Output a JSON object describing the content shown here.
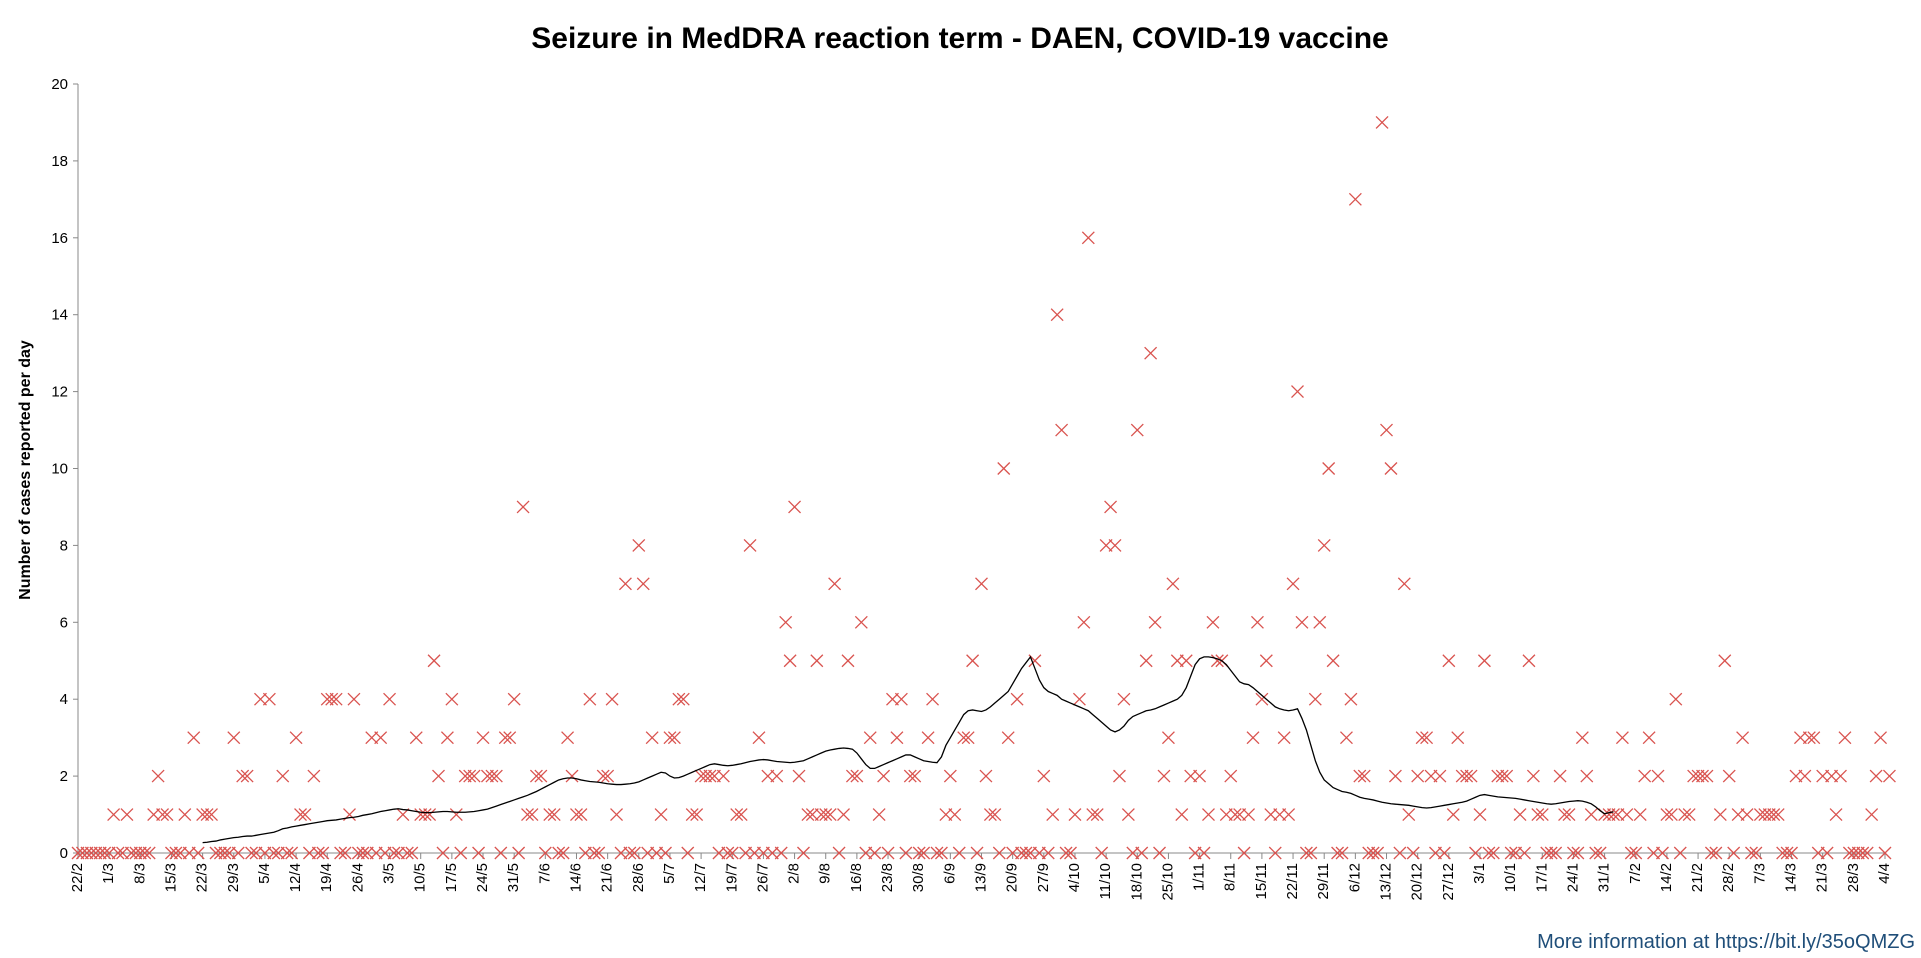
{
  "chart_data": {
    "type": "scatter",
    "title": "Seizure in MedDRA reaction term - DAEN, COVID-19 vaccine",
    "ylabel": "Number of cases reported per day",
    "xlabel": "",
    "ylim": [
      0,
      20
    ],
    "yticks": [
      0,
      2,
      4,
      6,
      8,
      10,
      12,
      14,
      16,
      18,
      20
    ],
    "x_tick_labels": [
      "22/2",
      "1/3",
      "8/3",
      "15/3",
      "22/3",
      "29/3",
      "5/4",
      "12/4",
      "19/4",
      "26/4",
      "3/5",
      "10/5",
      "17/5",
      "24/5",
      "31/5",
      "7/6",
      "14/6",
      "21/6",
      "28/6",
      "5/7",
      "12/7",
      "19/7",
      "26/7",
      "2/8",
      "9/8",
      "16/8",
      "23/8",
      "30/8",
      "6/9",
      "13/9",
      "20/9",
      "27/9",
      "4/10",
      "11/10",
      "18/10",
      "25/10",
      "1/11",
      "8/11",
      "15/11",
      "22/11",
      "29/11",
      "6/12",
      "13/12",
      "20/12",
      "27/12",
      "3/1",
      "10/1",
      "17/1",
      "24/1",
      "31/1",
      "7/2",
      "14/2",
      "21/2",
      "28/2",
      "7/3",
      "14/3",
      "21/3",
      "28/3",
      "4/4"
    ],
    "grid": false,
    "legend": "none",
    "series": [
      {
        "kind": "markers",
        "marker": "x",
        "color": "#d9534f",
        "values": [
          0,
          0,
          0,
          0,
          0,
          0,
          0,
          0,
          1,
          0,
          0,
          1,
          0,
          0,
          0,
          0,
          0,
          1,
          2,
          1,
          1,
          0,
          0,
          0,
          1,
          0,
          3,
          0,
          1,
          1,
          1,
          0,
          0,
          0,
          0,
          3,
          0,
          2,
          2,
          0,
          0,
          4,
          0,
          4,
          0,
          0,
          2,
          0,
          0,
          3,
          1,
          1,
          0,
          2,
          0,
          0,
          4,
          4,
          4,
          0,
          0,
          1,
          4,
          0,
          0,
          0,
          3,
          0,
          3,
          0,
          4,
          0,
          0,
          1,
          0,
          0,
          3,
          1,
          1,
          1,
          5,
          2,
          0,
          3,
          4,
          1,
          0,
          2,
          2,
          2,
          0,
          3,
          2,
          2,
          2,
          0,
          3,
          3,
          4,
          0,
          9,
          1,
          1,
          2,
          2,
          0,
          1,
          1,
          0,
          0,
          3,
          2,
          1,
          1,
          0,
          4,
          0,
          0,
          2,
          2,
          4,
          1,
          0,
          7,
          0,
          0,
          8,
          7,
          0,
          3,
          0,
          1,
          0,
          3,
          3,
          4,
          4,
          0,
          1,
          1,
          2,
          2,
          2,
          2,
          0,
          2,
          0,
          0,
          1,
          1,
          0,
          8,
          0,
          3,
          0,
          2,
          0,
          2,
          0,
          6,
          5,
          9,
          2,
          0,
          1,
          1,
          5,
          1,
          1,
          1,
          7,
          0,
          1,
          5,
          2,
          2,
          6,
          0,
          3,
          0,
          1,
          2,
          0,
          4,
          3,
          4,
          0,
          2,
          2,
          0,
          0,
          3,
          4,
          0,
          0,
          1,
          2,
          1,
          0,
          3,
          3,
          5,
          0,
          7,
          2,
          1,
          1,
          0,
          10,
          3,
          0,
          4,
          0,
          0,
          0,
          5,
          0,
          2,
          0,
          1,
          14,
          11,
          0,
          0,
          1,
          4,
          6,
          16,
          1,
          1,
          0,
          8,
          9,
          8,
          2,
          4,
          1,
          0,
          11,
          0,
          5,
          13,
          6,
          0,
          2,
          3,
          7,
          5,
          1,
          5,
          2,
          0,
          2,
          0,
          1,
          6,
          5,
          5,
          1,
          2,
          1,
          1,
          0,
          1,
          3,
          6,
          4,
          5,
          1,
          0,
          1,
          3,
          1,
          7,
          12,
          6,
          0,
          0,
          4,
          6,
          8,
          10,
          5,
          0,
          0,
          3,
          4,
          17,
          2,
          2,
          0,
          0,
          0,
          19,
          11,
          10,
          2,
          0,
          7,
          1,
          0,
          2,
          3,
          3,
          2,
          0,
          2,
          0,
          5,
          1,
          3,
          2,
          2,
          2,
          0,
          1,
          5,
          0,
          0,
          2,
          2,
          2,
          0,
          0,
          1,
          0,
          5,
          2,
          1,
          1,
          0,
          0,
          0,
          2,
          1,
          1,
          0,
          0,
          3,
          2,
          1,
          0,
          0,
          1,
          1,
          1,
          1,
          3,
          1,
          0,
          0,
          1,
          2,
          3,
          0,
          2,
          0,
          1,
          1,
          4,
          0,
          1,
          1,
          2,
          2,
          2,
          2,
          0,
          0,
          1,
          5,
          2,
          0,
          1,
          3,
          1,
          0,
          0,
          1,
          1,
          1,
          1,
          1,
          0,
          0,
          0,
          2,
          3,
          2,
          3,
          3,
          0,
          2,
          0,
          2,
          1,
          2,
          3,
          0,
          0,
          0,
          0,
          0,
          1,
          2,
          3,
          0,
          2
        ]
      },
      {
        "kind": "line",
        "color": "#000000",
        "start_index": 28,
        "values": [
          0.27,
          0.28,
          0.3,
          0.31,
          0.34,
          0.36,
          0.38,
          0.4,
          0.41,
          0.43,
          0.44,
          0.44,
          0.46,
          0.48,
          0.5,
          0.52,
          0.54,
          0.58,
          0.63,
          0.65,
          0.68,
          0.7,
          0.72,
          0.74,
          0.76,
          0.78,
          0.8,
          0.82,
          0.84,
          0.85,
          0.86,
          0.88,
          0.9,
          0.92,
          0.93,
          0.95,
          0.98,
          1.0,
          1.02,
          1.05,
          1.08,
          1.1,
          1.12,
          1.14,
          1.15,
          1.13,
          1.12,
          1.1,
          1.08,
          1.06,
          1.05,
          1.05,
          1.06,
          1.07,
          1.08,
          1.08,
          1.07,
          1.06,
          1.06,
          1.06,
          1.07,
          1.08,
          1.1,
          1.12,
          1.14,
          1.18,
          1.22,
          1.26,
          1.3,
          1.34,
          1.38,
          1.42,
          1.46,
          1.5,
          1.55,
          1.6,
          1.66,
          1.72,
          1.78,
          1.84,
          1.9,
          1.93,
          1.95,
          1.95,
          1.93,
          1.9,
          1.88,
          1.86,
          1.85,
          1.84,
          1.82,
          1.8,
          1.79,
          1.78,
          1.78,
          1.79,
          1.8,
          1.82,
          1.85,
          1.9,
          1.95,
          2.0,
          2.05,
          2.1,
          2.08,
          2.0,
          1.95,
          1.96,
          2.0,
          2.05,
          2.1,
          2.15,
          2.2,
          2.25,
          2.3,
          2.32,
          2.3,
          2.28,
          2.27,
          2.28,
          2.3,
          2.32,
          2.35,
          2.38,
          2.4,
          2.42,
          2.43,
          2.42,
          2.4,
          2.38,
          2.37,
          2.36,
          2.35,
          2.36,
          2.38,
          2.4,
          2.45,
          2.5,
          2.55,
          2.6,
          2.65,
          2.68,
          2.7,
          2.72,
          2.73,
          2.72,
          2.7,
          2.6,
          2.45,
          2.3,
          2.2,
          2.2,
          2.25,
          2.3,
          2.35,
          2.4,
          2.45,
          2.5,
          2.55,
          2.55,
          2.5,
          2.45,
          2.4,
          2.38,
          2.36,
          2.35,
          2.5,
          2.8,
          3.0,
          3.2,
          3.4,
          3.6,
          3.7,
          3.72,
          3.7,
          3.68,
          3.72,
          3.8,
          3.9,
          4.0,
          4.1,
          4.2,
          4.4,
          4.6,
          4.8,
          4.95,
          5.1,
          4.8,
          4.5,
          4.3,
          4.2,
          4.15,
          4.1,
          4.0,
          3.95,
          3.9,
          3.85,
          3.8,
          3.75,
          3.7,
          3.6,
          3.5,
          3.4,
          3.3,
          3.2,
          3.15,
          3.2,
          3.3,
          3.45,
          3.55,
          3.6,
          3.65,
          3.7,
          3.72,
          3.75,
          3.8,
          3.85,
          3.9,
          3.95,
          4.0,
          4.1,
          4.3,
          4.6,
          4.9,
          5.05,
          5.1,
          5.1,
          5.08,
          5.05,
          5.0,
          4.9,
          4.75,
          4.6,
          4.45,
          4.4,
          4.38,
          4.3,
          4.2,
          4.1,
          4.0,
          3.9,
          3.8,
          3.75,
          3.72,
          3.7,
          3.72,
          3.75,
          3.5,
          3.2,
          2.8,
          2.4,
          2.1,
          1.9,
          1.8,
          1.7,
          1.65,
          1.6,
          1.58,
          1.55,
          1.5,
          1.45,
          1.42,
          1.4,
          1.38,
          1.35,
          1.32,
          1.3,
          1.28,
          1.27,
          1.26,
          1.25,
          1.24,
          1.22,
          1.2,
          1.18,
          1.17,
          1.18,
          1.2,
          1.22,
          1.24,
          1.26,
          1.28,
          1.3,
          1.32,
          1.35,
          1.4,
          1.45,
          1.5,
          1.52,
          1.5,
          1.48,
          1.46,
          1.45,
          1.44,
          1.43,
          1.42,
          1.4,
          1.38,
          1.36,
          1.34,
          1.32,
          1.3,
          1.28,
          1.27,
          1.28,
          1.3,
          1.32,
          1.34,
          1.35,
          1.36,
          1.35,
          1.32,
          1.28,
          1.2,
          1.1,
          1.02,
          1.05,
          1.07
        ]
      }
    ]
  },
  "footer": {
    "text": "More information at https://bit.ly/35oQMZG"
  }
}
